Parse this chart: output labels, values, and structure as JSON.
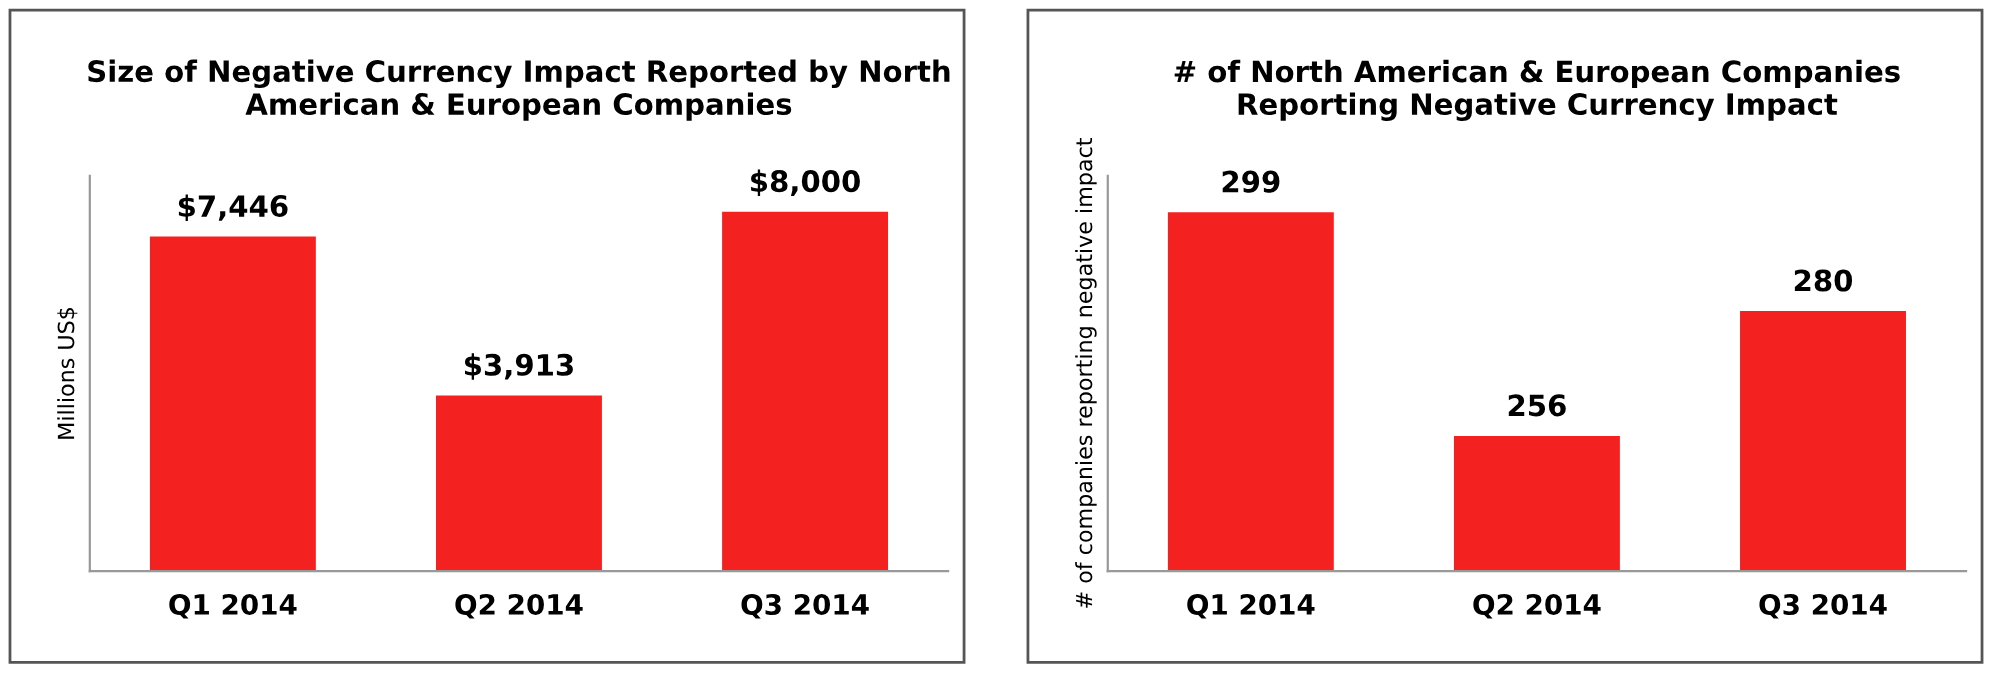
{
  "chart_data": [
    {
      "type": "bar",
      "title": "Size of Negative Currency Impact Reported by North\nAmerican & European Companies",
      "ylabel": "Millions US$",
      "categories": [
        "Q1 2014",
        "Q2 2014",
        "Q3 2014"
      ],
      "values": [
        7446,
        3913,
        8000
      ],
      "value_labels": [
        "$7,446",
        "$3,913",
        "$8,000"
      ],
      "color": "#f42121",
      "ylim": [
        0,
        8800
      ],
      "tick_labels": "x",
      "grid": false,
      "legend": false
    },
    {
      "type": "bar",
      "title": "# of North American & European Companies\nReporting Negative Currency Impact",
      "ylabel": "# of companies reporting negative impact",
      "categories": [
        "Q1 2014",
        "Q2 2014",
        "Q3 2014"
      ],
      "values": [
        299,
        256,
        280
      ],
      "data_labels": true,
      "color": "#f42121",
      "ylim": [
        230,
        306
      ],
      "tick_labels": "x",
      "grid": false,
      "legend": false
    }
  ]
}
